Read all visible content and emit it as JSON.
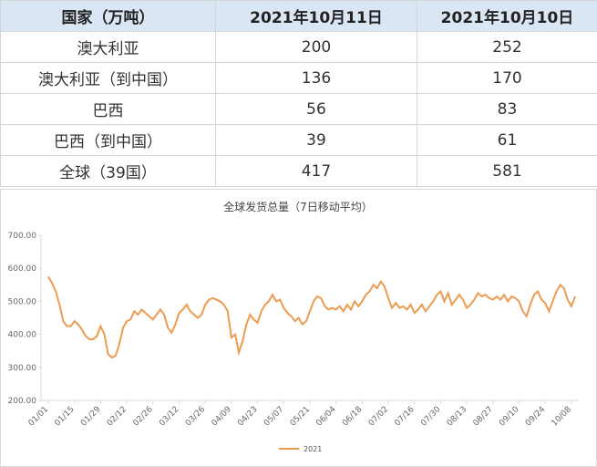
{
  "table": {
    "header": [
      "国家（万吨）",
      "2021年10月11日",
      "2021年10月10日"
    ],
    "rows": [
      [
        "澳大利亚",
        "200",
        "252"
      ],
      [
        "澳大利亚（到中国）",
        "136",
        "170"
      ],
      [
        "巴西",
        "56",
        "83"
      ],
      [
        "巴西（到中国）",
        "39",
        "61"
      ],
      [
        "全球（39国）",
        "417",
        "581"
      ]
    ]
  },
  "chart_data": {
    "type": "line",
    "title": "全球发货总量（7日移动平均）",
    "categories": [
      "01/01",
      null,
      null,
      null,
      null,
      null,
      null,
      "01/15",
      null,
      null,
      null,
      null,
      null,
      null,
      "01/29",
      null,
      null,
      null,
      null,
      null,
      null,
      "02/12",
      null,
      null,
      null,
      null,
      null,
      null,
      "02/26",
      null,
      null,
      null,
      null,
      null,
      null,
      "03/12",
      null,
      null,
      null,
      null,
      null,
      null,
      "03/26",
      null,
      null,
      null,
      null,
      null,
      null,
      "04/09",
      null,
      null,
      null,
      null,
      null,
      null,
      "04/23",
      null,
      null,
      null,
      null,
      null,
      null,
      "05/07",
      null,
      null,
      null,
      null,
      null,
      null,
      "05/21",
      null,
      null,
      null,
      null,
      null,
      null,
      "06/04",
      null,
      null,
      null,
      null,
      null,
      null,
      "06/18",
      null,
      null,
      null,
      null,
      null,
      null,
      "07/02",
      null,
      null,
      null,
      null,
      null,
      null,
      "07/16",
      null,
      null,
      null,
      null,
      null,
      null,
      "07/30",
      null,
      null,
      null,
      null,
      null,
      null,
      "08/13",
      null,
      null,
      null,
      null,
      null,
      null,
      "08/27",
      null,
      null,
      null,
      null,
      null,
      null,
      "09/10",
      null,
      null,
      null,
      null,
      null,
      null,
      "09/24",
      null,
      null,
      null,
      null,
      null,
      null,
      "10/08",
      null
    ],
    "series": [
      {
        "name": "2021",
        "color": "#ed9b4f",
        "values": [
          575,
          555,
          530,
          490,
          440,
          425,
          425,
          440,
          430,
          415,
          395,
          385,
          385,
          395,
          425,
          400,
          340,
          330,
          335,
          370,
          420,
          440,
          445,
          470,
          460,
          475,
          465,
          455,
          445,
          460,
          475,
          460,
          420,
          405,
          430,
          465,
          475,
          490,
          470,
          460,
          450,
          460,
          490,
          505,
          510,
          505,
          500,
          490,
          470,
          390,
          400,
          345,
          380,
          430,
          460,
          445,
          435,
          470,
          490,
          500,
          520,
          500,
          505,
          480,
          465,
          455,
          440,
          450,
          430,
          440,
          470,
          500,
          515,
          510,
          485,
          475,
          480,
          475,
          485,
          470,
          490,
          475,
          500,
          485,
          500,
          520,
          530,
          550,
          540,
          560,
          545,
          510,
          480,
          495,
          480,
          485,
          475,
          490,
          465,
          475,
          490,
          470,
          485,
          500,
          520,
          530,
          500,
          525,
          490,
          505,
          520,
          505,
          480,
          490,
          505,
          525,
          515,
          520,
          510,
          505,
          515,
          505,
          520,
          500,
          515,
          510,
          500,
          470,
          455,
          490,
          520,
          530,
          505,
          495,
          470,
          500,
          530,
          550,
          540,
          505,
          485,
          515
        ]
      }
    ],
    "ylim": [
      200,
      700
    ],
    "yticks": [
      {
        "value": 200,
        "label": "200.00"
      },
      {
        "value": 300,
        "label": "300.00"
      },
      {
        "value": 400,
        "label": "400.00"
      },
      {
        "value": 500,
        "label": "500.00"
      },
      {
        "value": 600,
        "label": "600.00"
      },
      {
        "value": 700,
        "label": "700.00"
      }
    ],
    "grid": false,
    "legend": "bottom"
  }
}
